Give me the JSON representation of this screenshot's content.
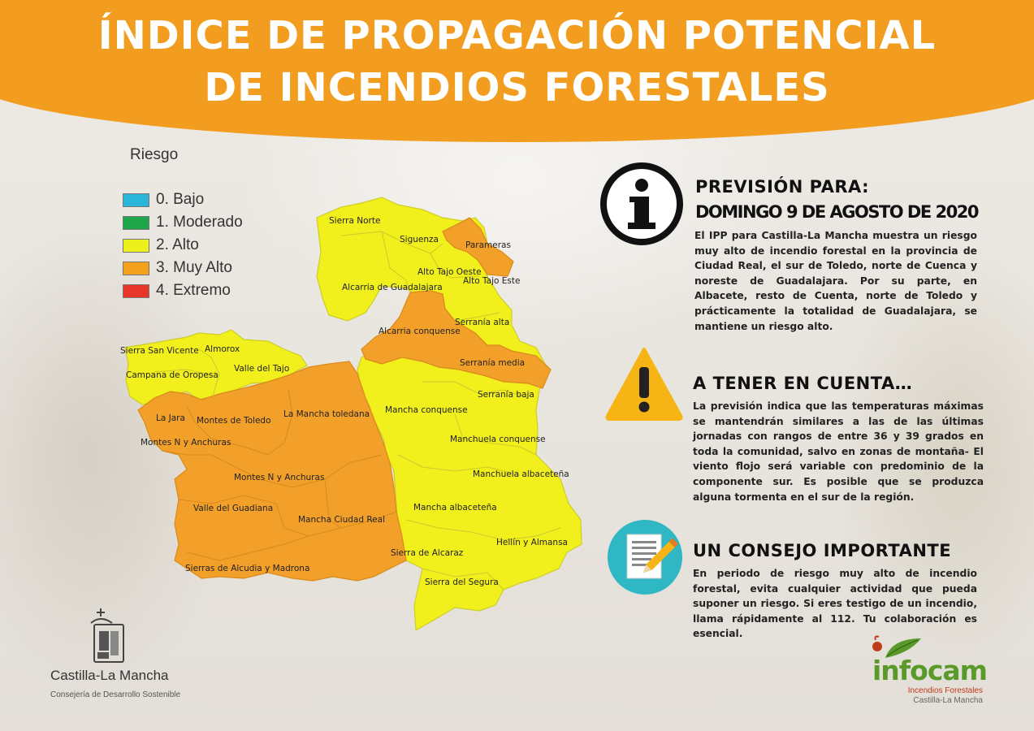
{
  "header": {
    "title_line1": "ÍNDICE DE PROPAGACIÓN POTENCIAL",
    "title_line2": "DE INCENDIOS FORESTALES",
    "color": "#f29d1f"
  },
  "legend": {
    "title": "Riesgo",
    "items": [
      {
        "label": "0. Bajo",
        "color": "#29b6d8"
      },
      {
        "label": "1. Moderado",
        "color": "#1fa64a"
      },
      {
        "label": "2. Alto",
        "color": "#eef01e"
      },
      {
        "label": "3. Muy Alto",
        "color": "#f4a21e"
      },
      {
        "label": "4. Extremo",
        "color": "#e8352a"
      }
    ]
  },
  "map": {
    "levels": {
      "alto": "#f1ef1c",
      "muy_alto": "#f2a02a"
    },
    "labels": {
      "sierra_norte": "Sierra Norte",
      "siguenza": "Siguenza",
      "parameras": "Parameras",
      "alto_tajo_oeste": "Alto Tajo Oeste",
      "alto_tajo_este": "Alto Tajo Este",
      "alcarria_guadalajara": "Alcarria de Guadalajara",
      "serrania_alta": "Serranía alta",
      "alcarria_conquense": "Alcarria conquense",
      "serrania_media": "Serranía media",
      "sierra_san_vicente": "Sierra San Vicente",
      "almorox": "Almorox",
      "valle_tajo": "Valle del Tajo",
      "campana_oropesa": "Campana de Oropesa",
      "serrania_baja": "Serranía baja",
      "la_jara": "La Jara",
      "montes_toledo": "Montes de Toledo",
      "mancha_toledana": "La Mancha toledana",
      "mancha_conquense": "Mancha conquense",
      "montes_n_anchuras_1": "Montes N y Anchuras",
      "manchuela_conquense": "Manchuela conquense",
      "manchuela_albacetena": "Manchuela albaceteña",
      "montes_n_anchuras_2": "Montes N y Anchuras",
      "valle_guadiana": "Valle del Guadiana",
      "mancha_albacetena": "Mancha albaceteña",
      "mancha_ciudad_real": "Mancha Ciudad Real",
      "hellin_almansa": "Hellín y Almansa",
      "sierra_alcaraz": "Sierra de Alcaraz",
      "sierras_alcudia": "Sierras de Alcudia y Madrona",
      "sierra_segura": "Sierra del Segura"
    }
  },
  "forecast": {
    "icon": "info-icon",
    "title_line1": "PREVISIÓN PARA:",
    "title_line2": "DOMINGO 9 DE AGOSTO DE 2020",
    "text": "El IPP para Castilla-La Mancha muestra un riesgo muy alto de incendio forestal en la provincia de Ciudad Real, el sur de Toledo, norte de Cuenca y noreste de Guadalajara. Por su parte, en Albacete, resto de Cuenta, norte de Toledo y prácticamente la totalidad de Guadalajara, se mantiene un riesgo alto."
  },
  "warning": {
    "icon": "warning-icon",
    "title": "A TENER EN CUENTA…",
    "text": "La previsión indica que las temperaturas máximas se mantendrán similares a las de las últimas jornadas con rangos de entre 36 y 39 grados en toda la comunidad, salvo en zonas de montaña- El viento flojo será variable con predominio de la componente sur. Es posible que se produzca alguna tormenta en el sur de la región."
  },
  "advice": {
    "icon": "document-pencil-icon",
    "title": "UN CONSEJO IMPORTANTE",
    "text": "En periodo de riesgo muy alto de incendio forestal, evita cualquier actividad que pueda suponer un riesgo. Si eres testigo de un incendio, llama rápidamente al 112. Tu colaboración es esencial."
  },
  "footer": {
    "org_name": "Castilla-La Mancha",
    "org_sub": "Consejería de Desarrollo Sostenible",
    "brand_name": "infocam",
    "brand_sub1": "Incendios Forestales",
    "brand_sub2": "Castilla-La Mancha"
  }
}
